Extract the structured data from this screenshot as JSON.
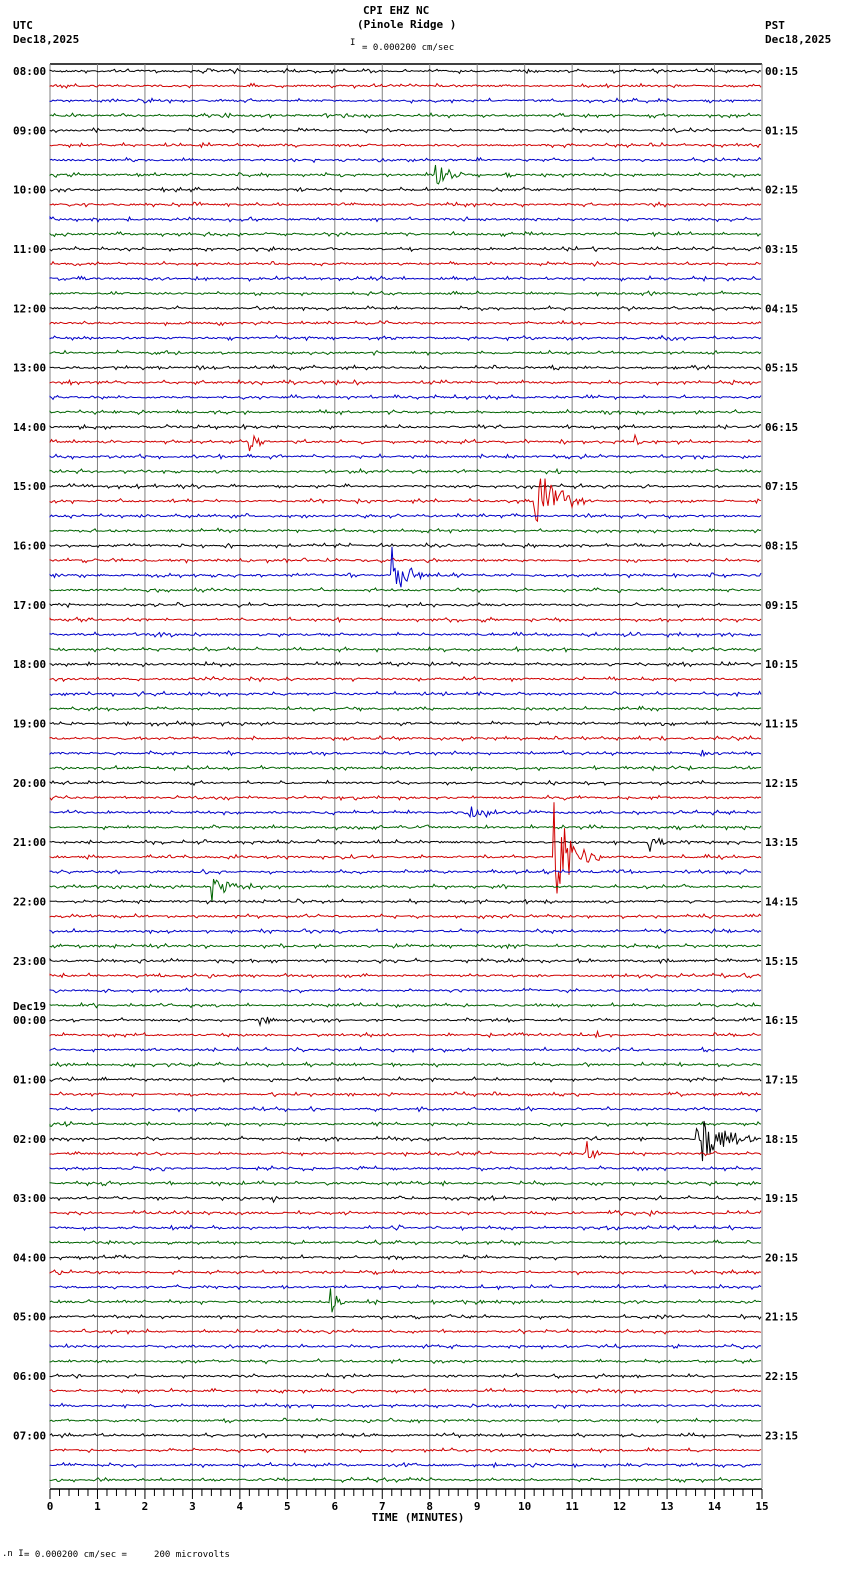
{
  "header": {
    "station": "CPI EHZ NC",
    "location": "(Pinole Ridge )",
    "left_tz": "UTC",
    "left_date": "Dec18,2025",
    "right_tz": "PST",
    "right_date": "Dec18,2025",
    "scale": "= 0.000200 cm/sec"
  },
  "footer": {
    "scale_note": "= 0.000200 cm/sec =     200 microvolts",
    "xlabel": "TIME (MINUTES)"
  },
  "colors": {
    "trace_cycle": [
      "#000000",
      "#d00000",
      "#0000c8",
      "#006400"
    ],
    "grid": "#808080"
  },
  "chart_data": {
    "type": "helicorder",
    "title": "CPI EHZ NC (Pinole Ridge )",
    "xlabel": "TIME (MINUTES)",
    "xlim": [
      0,
      15
    ],
    "x_ticks": [
      0,
      1,
      2,
      3,
      4,
      5,
      6,
      7,
      8,
      9,
      10,
      11,
      12,
      13,
      14,
      15
    ],
    "traces_per_hour": 4,
    "trace_minutes": 15,
    "left_labels": [
      "08:00",
      "09:00",
      "10:00",
      "11:00",
      "12:00",
      "13:00",
      "14:00",
      "15:00",
      "16:00",
      "17:00",
      "18:00",
      "19:00",
      "20:00",
      "21:00",
      "22:00",
      "23:00",
      "00:00",
      "01:00",
      "02:00",
      "03:00",
      "04:00",
      "05:00",
      "06:00",
      "07:00"
    ],
    "date_change_label": {
      "text": "Dec19",
      "before_hour_index": 16
    },
    "right_labels": [
      "00:15",
      "01:15",
      "02:15",
      "03:15",
      "04:15",
      "05:15",
      "06:15",
      "07:15",
      "08:15",
      "09:15",
      "10:15",
      "11:15",
      "12:15",
      "13:15",
      "14:15",
      "15:15",
      "16:15",
      "17:15",
      "18:15",
      "19:15",
      "20:15",
      "21:15",
      "22:15",
      "23:15"
    ],
    "events": [
      {
        "trace": 7,
        "minute": 8.1,
        "dur": 1.0,
        "amp": 12
      },
      {
        "trace": 25,
        "minute": 4.2,
        "dur": 0.6,
        "amp": 10
      },
      {
        "trace": 25,
        "minute": 12.3,
        "dur": 0.2,
        "amp": 10
      },
      {
        "trace": 29,
        "minute": 10.2,
        "dur": 1.2,
        "amp": 45
      },
      {
        "trace": 34,
        "minute": 7.2,
        "dur": 0.8,
        "amp": 30
      },
      {
        "trace": 46,
        "minute": 13.7,
        "dur": 0.4,
        "amp": 6
      },
      {
        "trace": 50,
        "minute": 8.8,
        "dur": 1.0,
        "amp": 8
      },
      {
        "trace": 52,
        "minute": 12.6,
        "dur": 0.6,
        "amp": 12
      },
      {
        "trace": 53,
        "minute": 10.6,
        "dur": 1.0,
        "amp": 60
      },
      {
        "trace": 55,
        "minute": 3.4,
        "dur": 1.0,
        "amp": 16
      },
      {
        "trace": 64,
        "minute": 4.4,
        "dur": 0.8,
        "amp": 6
      },
      {
        "trace": 65,
        "minute": 11.5,
        "dur": 0.4,
        "amp": 4
      },
      {
        "trace": 72,
        "minute": 13.6,
        "dur": 1.3,
        "amp": 35
      },
      {
        "trace": 73,
        "minute": 11.3,
        "dur": 0.4,
        "amp": 14
      },
      {
        "trace": 76,
        "minute": 4.7,
        "dur": 0.2,
        "amp": 5
      },
      {
        "trace": 77,
        "minute": 12.6,
        "dur": 0.3,
        "amp": 8
      },
      {
        "trace": 78,
        "minute": 7.3,
        "dur": 0.3,
        "amp": 5
      },
      {
        "trace": 83,
        "minute": 5.9,
        "dur": 0.5,
        "amp": 16
      },
      {
        "trace": 89,
        "minute": 0.8,
        "dur": 0.3,
        "amp": 5
      }
    ]
  }
}
